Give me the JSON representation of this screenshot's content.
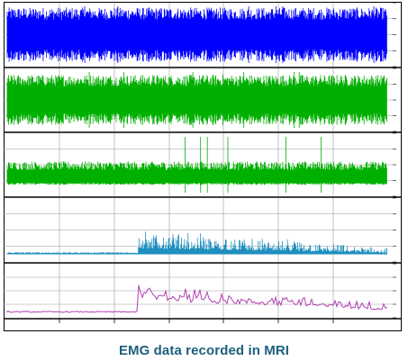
{
  "figure": {
    "caption": "EMG data recorded in MRI",
    "colors": {
      "frame": "#000000",
      "grid": "#9a9a9a",
      "caption": "#1c5f7d"
    }
  },
  "chart_data": [
    {
      "type": "line",
      "series": [
        {
          "color": "#0000ff",
          "pattern": "dense-uniform",
          "amplitude_level": 0.85,
          "baseline": 0.5
        }
      ],
      "grid": true
    },
    {
      "type": "line",
      "series": [
        {
          "color": "#00b000",
          "pattern": "dense-uniform",
          "amplitude_level": 0.8,
          "baseline": 0.5
        }
      ],
      "grid": true
    },
    {
      "type": "line",
      "series": [
        {
          "color": "#00b000",
          "pattern": "dense-uniform",
          "amplitude_level": 0.55,
          "baseline": 0.25
        }
      ],
      "grid": true
    },
    {
      "type": "line",
      "series": [
        {
          "color": "#1e8fbf",
          "pattern": "quiet-then-bursts",
          "onset_fraction": 0.345,
          "amplitude_level": 0.45,
          "baseline": 0.12
        }
      ],
      "grid": true
    },
    {
      "type": "line",
      "series": [
        {
          "color": "#b23fb2",
          "pattern": "step-plateaus",
          "onset_fraction": 0.345,
          "amplitude_level": 0.4,
          "baseline": 0.1
        }
      ],
      "grid": true
    }
  ]
}
